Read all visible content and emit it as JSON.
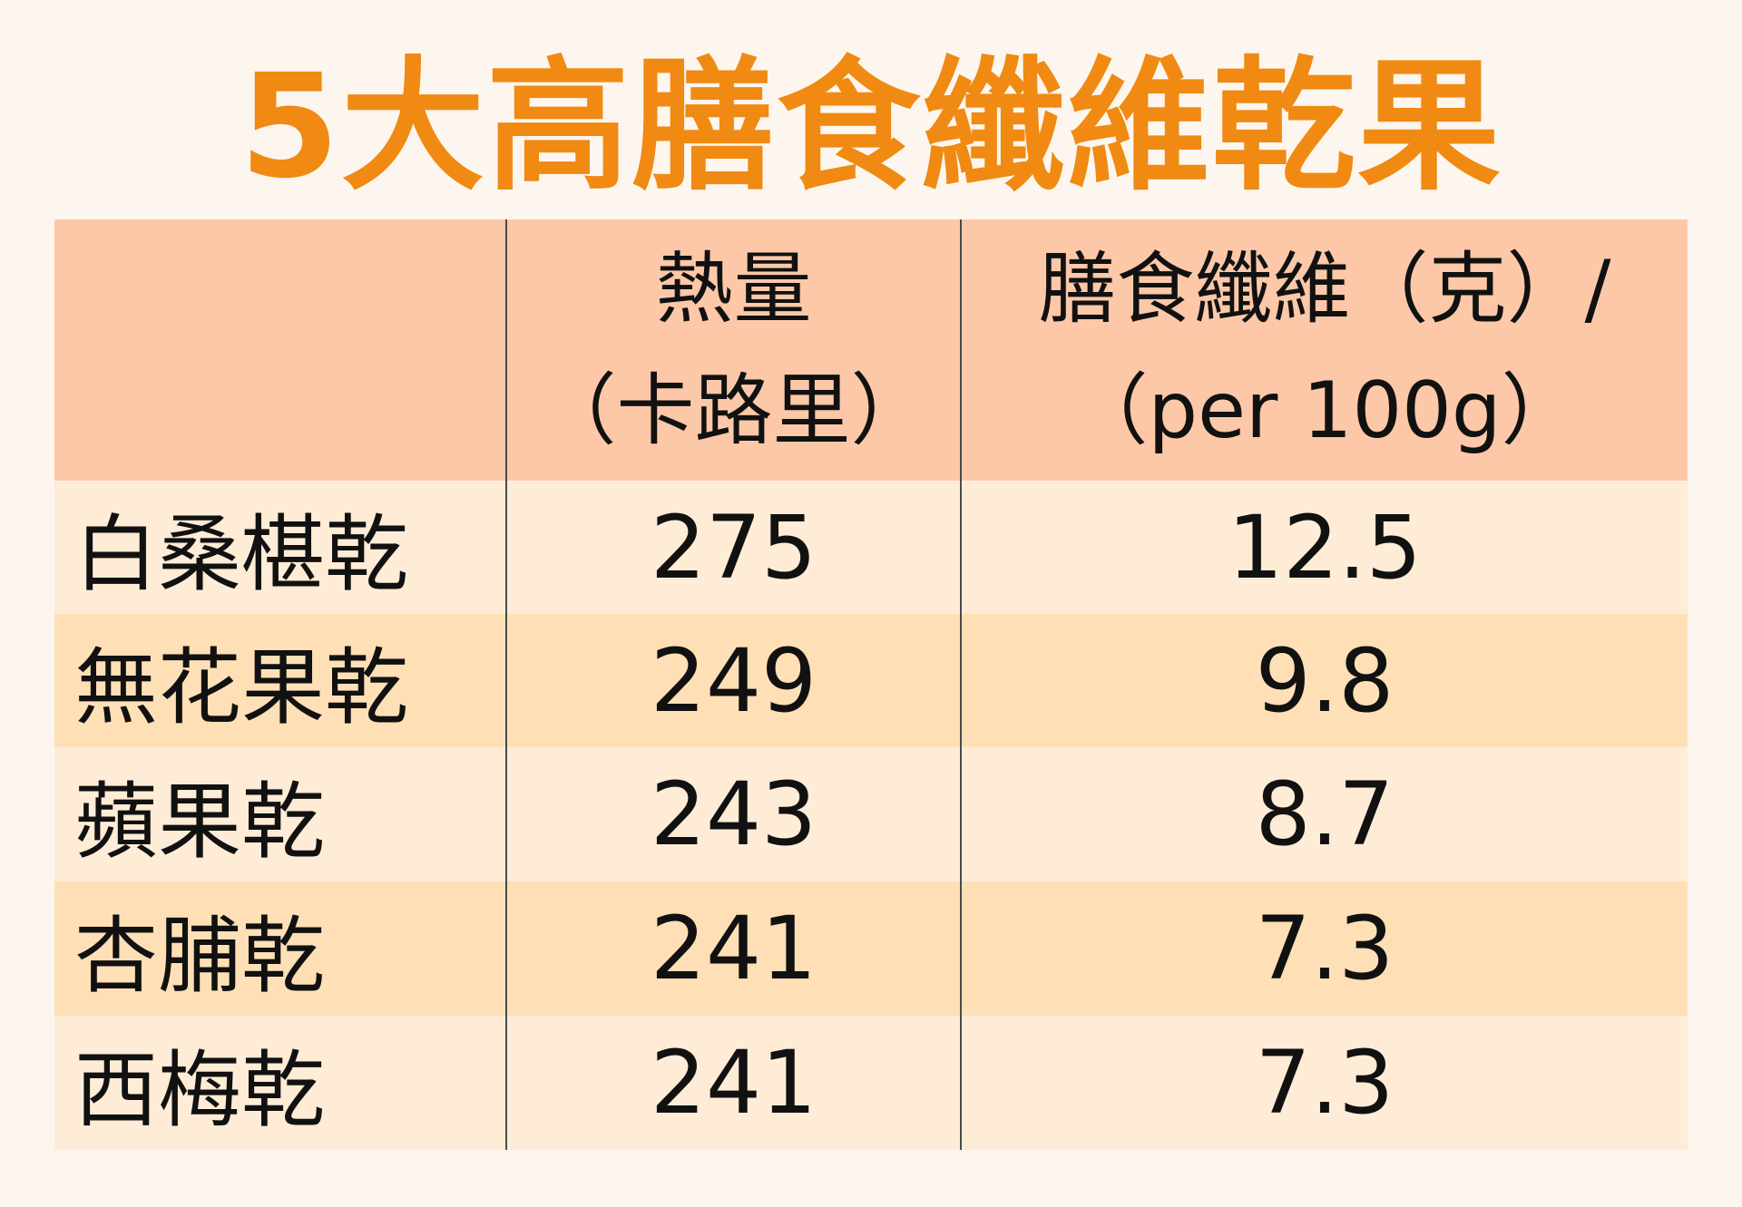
{
  "title": "5大高膳食纖維乾果",
  "table": {
    "headers": [
      {
        "line1": "",
        "line2": ""
      },
      {
        "line1": "熱量",
        "line2": "（卡路里）"
      },
      {
        "line1": "膳食纖維（克）/",
        "line2": "（per 100g）"
      }
    ],
    "rows": [
      {
        "name": "白桑椹乾",
        "calories": "275",
        "fiber": "12.5"
      },
      {
        "name": "無花果乾",
        "calories": "249",
        "fiber": "9.8"
      },
      {
        "name": "蘋果乾",
        "calories": "243",
        "fiber": "8.7"
      },
      {
        "name": "杏脯乾",
        "calories": "241",
        "fiber": "7.3"
      },
      {
        "name": "西梅乾",
        "calories": "241",
        "fiber": "7.3"
      }
    ]
  },
  "colors": {
    "title": "#f08a12",
    "header_bg": "#fcc8a8",
    "row_light": "#feecd6",
    "row_dark": "#ffe0b6",
    "page_bg": "#fdf6ef"
  }
}
